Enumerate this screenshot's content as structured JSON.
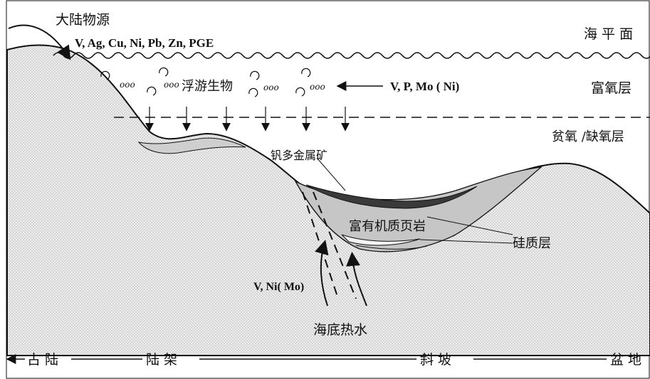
{
  "labels": {
    "continental_source": "大陆物源",
    "source_elements": "V, Ag, Cu, Ni, Pb, Zn, PGE",
    "sea_level": "海 平 面",
    "oxic_layer": "富氧层",
    "plankton": "浮游生物",
    "plankton_elements": "V, P, Mo ( Ni)",
    "anoxic_layer": "贫氧 /缺氧层",
    "ore": "钒多金属矿",
    "shale": "富有机质页岩",
    "siliceous": "硅质层",
    "hydrothermal_elements": "V, Ni( Mo)",
    "hydrothermal": "海底热水"
  },
  "zones": {
    "old_land": "古 陆",
    "shelf": "陆 架",
    "slope": "斜 坡",
    "basin": "盆 地"
  },
  "plankton_marks": [
    "ooo",
    "ooo",
    "ooo",
    "ooo"
  ],
  "colors": {
    "rock_fill": "#e9e9e9",
    "shale_fill": "#c8c8c8",
    "ore_fill": "#3a3a3a",
    "line": "#111111"
  }
}
